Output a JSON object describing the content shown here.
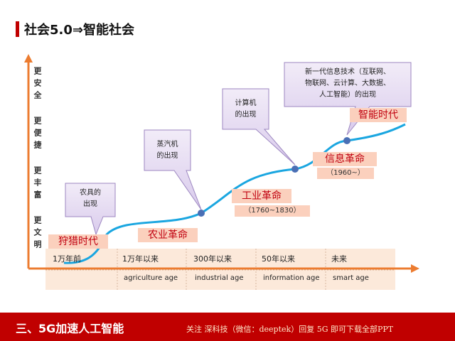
{
  "header": {
    "title": "社会5.0⇒智能社会"
  },
  "benefits": [
    "更安全",
    "更便捷",
    "更丰富",
    "更文明"
  ],
  "stages": [
    {
      "label": "狩猎时代"
    },
    {
      "label": "农业革命"
    },
    {
      "label": "工业革命",
      "period": "（1760~1830）"
    },
    {
      "label": "信息革命",
      "period": "（1960~）"
    },
    {
      "label": "智能时代"
    }
  ],
  "bubbles": [
    {
      "lines": [
        "农具的",
        "出现"
      ]
    },
    {
      "lines": [
        "蒸汽机",
        "的出现"
      ]
    },
    {
      "lines": [
        "计算机",
        "的出现"
      ]
    },
    {
      "lines": [
        "新一代信息技术（互联网、",
        "物联网、云计算、大数据、",
        "人工智能）的出现"
      ]
    }
  ],
  "table": {
    "rows": [
      [
        "1万年前",
        "1万年以来",
        "300年以来",
        "50年以来",
        "未来"
      ],
      [
        null,
        "agriculture age",
        "industrial age",
        "information age",
        "smart age"
      ]
    ]
  },
  "footer": {
    "section": "三、5G加速人工智能",
    "note": "关注 深科技（微信：deeptek）回复 5G 即可下载全部PPT"
  }
}
